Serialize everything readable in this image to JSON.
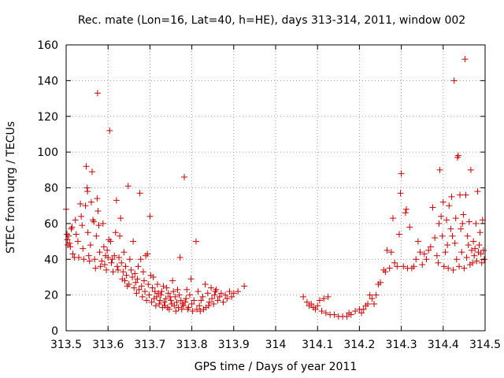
{
  "chart_data": {
    "type": "scatter",
    "title": "Rec. mate (Lon=16, Lat=40, h=HE), days 313-314, 2011, window 002",
    "xlabel": "GPS time / Days of year 2011",
    "ylabel": "STEC from uqrg / TECUs",
    "xlim": [
      313.5,
      314.5
    ],
    "ylim": [
      0,
      160
    ],
    "grid": true,
    "marker": "+",
    "marker_color": "#cc0000",
    "xticks": [
      313.5,
      313.6,
      313.7,
      313.8,
      313.9,
      314,
      314.1,
      314.2,
      314.3,
      314.4,
      314.5
    ],
    "xtick_labels": [
      "313.5",
      "313.6",
      "313.7",
      "313.8",
      "313.9",
      "314",
      "314.1",
      "314.2",
      "314.3",
      "314.4",
      "314.5"
    ],
    "yticks": [
      0,
      20,
      40,
      60,
      80,
      100,
      120,
      140,
      160
    ],
    "ytick_labels": [
      "0",
      "20",
      "40",
      "60",
      "80",
      "100",
      "120",
      "140",
      "160"
    ],
    "series": [
      {
        "name": "STEC",
        "points": [
          [
            313.5,
            68
          ],
          [
            313.502,
            54
          ],
          [
            313.503,
            51
          ],
          [
            313.504,
            48
          ],
          [
            313.506,
            53
          ],
          [
            313.508,
            49
          ],
          [
            313.51,
            47
          ],
          [
            313.512,
            57
          ],
          [
            313.514,
            58
          ],
          [
            313.516,
            43
          ],
          [
            313.52,
            41
          ],
          [
            313.522,
            62
          ],
          [
            313.524,
            54
          ],
          [
            313.528,
            50
          ],
          [
            313.53,
            41
          ],
          [
            313.534,
            71
          ],
          [
            313.536,
            64
          ],
          [
            313.538,
            59
          ],
          [
            313.54,
            46
          ],
          [
            313.542,
            40
          ],
          [
            313.546,
            70
          ],
          [
            313.548,
            92
          ],
          [
            313.55,
            80
          ],
          [
            313.551,
            78
          ],
          [
            313.552,
            55
          ],
          [
            313.554,
            42
          ],
          [
            313.556,
            39
          ],
          [
            313.558,
            48
          ],
          [
            313.56,
            72
          ],
          [
            313.562,
            89
          ],
          [
            313.564,
            62
          ],
          [
            313.566,
            61
          ],
          [
            313.568,
            40
          ],
          [
            313.57,
            35
          ],
          [
            313.572,
            53
          ],
          [
            313.574,
            74
          ],
          [
            313.575,
            133
          ],
          [
            313.576,
            67
          ],
          [
            313.578,
            59
          ],
          [
            313.58,
            44
          ],
          [
            313.582,
            36
          ],
          [
            313.585,
            39
          ],
          [
            313.588,
            60
          ],
          [
            313.59,
            47
          ],
          [
            313.592,
            37
          ],
          [
            313.594,
            42
          ],
          [
            313.596,
            34
          ],
          [
            313.598,
            45
          ],
          [
            313.6,
            41
          ],
          [
            313.602,
            51
          ],
          [
            313.604,
            112
          ],
          [
            313.606,
            50
          ],
          [
            313.608,
            38
          ],
          [
            313.61,
            40
          ],
          [
            313.612,
            33
          ],
          [
            313.615,
            42
          ],
          [
            313.618,
            55
          ],
          [
            313.62,
            73
          ],
          [
            313.622,
            36
          ],
          [
            313.624,
            34
          ],
          [
            313.626,
            41
          ],
          [
            313.628,
            53
          ],
          [
            313.63,
            63
          ],
          [
            313.632,
            38
          ],
          [
            313.634,
            29
          ],
          [
            313.636,
            33
          ],
          [
            313.638,
            44
          ],
          [
            313.64,
            28
          ],
          [
            313.642,
            36
          ],
          [
            313.644,
            31
          ],
          [
            313.646,
            25
          ],
          [
            313.648,
            81
          ],
          [
            313.65,
            26
          ],
          [
            313.652,
            40
          ],
          [
            313.655,
            34
          ],
          [
            313.658,
            30
          ],
          [
            313.66,
            50
          ],
          [
            313.662,
            24
          ],
          [
            313.664,
            32
          ],
          [
            313.666,
            27
          ],
          [
            313.668,
            21
          ],
          [
            313.67,
            29
          ],
          [
            313.672,
            36
          ],
          [
            313.674,
            23
          ],
          [
            313.676,
            77
          ],
          [
            313.678,
            40
          ],
          [
            313.68,
            25
          ],
          [
            313.682,
            19
          ],
          [
            313.684,
            33
          ],
          [
            313.686,
            28
          ],
          [
            313.688,
            22
          ],
          [
            313.69,
            42
          ],
          [
            313.692,
            17
          ],
          [
            313.694,
            43
          ],
          [
            313.696,
            26
          ],
          [
            313.698,
            20
          ],
          [
            313.7,
            64
          ],
          [
            313.702,
            31
          ],
          [
            313.704,
            16
          ],
          [
            313.706,
            24
          ],
          [
            313.708,
            30
          ],
          [
            313.71,
            18
          ],
          [
            313.712,
            22
          ],
          [
            313.714,
            14
          ],
          [
            313.716,
            19
          ],
          [
            313.718,
            26
          ],
          [
            313.72,
            21
          ],
          [
            313.722,
            15
          ],
          [
            313.724,
            17
          ],
          [
            313.726,
            20
          ],
          [
            313.728,
            22
          ],
          [
            313.73,
            13
          ],
          [
            313.732,
            25
          ],
          [
            313.734,
            16
          ],
          [
            313.736,
            14
          ],
          [
            313.738,
            18
          ],
          [
            313.74,
            24
          ],
          [
            313.742,
            13
          ],
          [
            313.744,
            21
          ],
          [
            313.746,
            12
          ],
          [
            313.748,
            19
          ],
          [
            313.75,
            17
          ],
          [
            313.752,
            15
          ],
          [
            313.754,
            28
          ],
          [
            313.756,
            22
          ],
          [
            313.758,
            14
          ],
          [
            313.76,
            19
          ],
          [
            313.762,
            11
          ],
          [
            313.764,
            16
          ],
          [
            313.766,
            23
          ],
          [
            313.768,
            13
          ],
          [
            313.77,
            20
          ],
          [
            313.772,
            41
          ],
          [
            313.774,
            17
          ],
          [
            313.776,
            12
          ],
          [
            313.778,
            15
          ],
          [
            313.78,
            14
          ],
          [
            313.782,
            86
          ],
          [
            313.784,
            16
          ],
          [
            313.786,
            18
          ],
          [
            313.788,
            23
          ],
          [
            313.79,
            12
          ],
          [
            313.792,
            13
          ],
          [
            313.795,
            20
          ],
          [
            313.798,
            29
          ],
          [
            313.8,
            15
          ],
          [
            313.802,
            11
          ],
          [
            313.805,
            17
          ],
          [
            313.81,
            50
          ],
          [
            313.812,
            12
          ],
          [
            313.815,
            22
          ],
          [
            313.818,
            14
          ],
          [
            313.82,
            11
          ],
          [
            313.822,
            17
          ],
          [
            313.826,
            19
          ],
          [
            313.828,
            12
          ],
          [
            313.832,
            26
          ],
          [
            313.834,
            13
          ],
          [
            313.838,
            21
          ],
          [
            313.84,
            14
          ],
          [
            313.842,
            16
          ],
          [
            313.846,
            24
          ],
          [
            313.848,
            18
          ],
          [
            313.852,
            15
          ],
          [
            313.854,
            20
          ],
          [
            313.856,
            22
          ],
          [
            313.858,
            23
          ],
          [
            313.862,
            17
          ],
          [
            313.866,
            19
          ],
          [
            313.87,
            21
          ],
          [
            313.875,
            16
          ],
          [
            313.88,
            20
          ],
          [
            313.884,
            18
          ],
          [
            313.89,
            22
          ],
          [
            313.895,
            19
          ],
          [
            313.9,
            21
          ],
          [
            313.91,
            22
          ],
          [
            313.925,
            25
          ],
          [
            314.066,
            19
          ],
          [
            314.075,
            16
          ],
          [
            314.08,
            14
          ],
          [
            314.085,
            15
          ],
          [
            314.09,
            13
          ],
          [
            314.095,
            12
          ],
          [
            314.1,
            14
          ],
          [
            314.105,
            17
          ],
          [
            314.11,
            11
          ],
          [
            314.115,
            18
          ],
          [
            314.12,
            10
          ],
          [
            314.125,
            19
          ],
          [
            314.13,
            9
          ],
          [
            314.14,
            9
          ],
          [
            314.15,
            8
          ],
          [
            314.16,
            8
          ],
          [
            314.17,
            8
          ],
          [
            314.175,
            10
          ],
          [
            314.18,
            9
          ],
          [
            314.19,
            11
          ],
          [
            314.2,
            12
          ],
          [
            314.205,
            10
          ],
          [
            314.21,
            12
          ],
          [
            314.215,
            14
          ],
          [
            314.22,
            15
          ],
          [
            314.225,
            20
          ],
          [
            314.23,
            18
          ],
          [
            314.235,
            15
          ],
          [
            314.24,
            20
          ],
          [
            314.245,
            26
          ],
          [
            314.25,
            27
          ],
          [
            314.258,
            34
          ],
          [
            314.262,
            33
          ],
          [
            314.266,
            45
          ],
          [
            314.272,
            35
          ],
          [
            314.276,
            44
          ],
          [
            314.28,
            63
          ],
          [
            314.284,
            38
          ],
          [
            314.29,
            36
          ],
          [
            314.295,
            54
          ],
          [
            314.298,
            77
          ],
          [
            314.3,
            88
          ],
          [
            314.305,
            36
          ],
          [
            314.31,
            66
          ],
          [
            314.312,
            68
          ],
          [
            314.315,
            35
          ],
          [
            314.32,
            58
          ],
          [
            314.325,
            35
          ],
          [
            314.33,
            36
          ],
          [
            314.335,
            40
          ],
          [
            314.34,
            50
          ],
          [
            314.345,
            44
          ],
          [
            314.35,
            37
          ],
          [
            314.355,
            43
          ],
          [
            314.36,
            40
          ],
          [
            314.365,
            45
          ],
          [
            314.37,
            47
          ],
          [
            314.375,
            69
          ],
          [
            314.38,
            52
          ],
          [
            314.385,
            42
          ],
          [
            314.388,
            38
          ],
          [
            314.39,
            60
          ],
          [
            314.392,
            90
          ],
          [
            314.395,
            64
          ],
          [
            314.398,
            53
          ],
          [
            314.4,
            72
          ],
          [
            314.402,
            36
          ],
          [
            314.405,
            44
          ],
          [
            314.408,
            62
          ],
          [
            314.41,
            48
          ],
          [
            314.412,
            35
          ],
          [
            314.414,
            70
          ],
          [
            314.418,
            57
          ],
          [
            314.42,
            75
          ],
          [
            314.422,
            53
          ],
          [
            314.424,
            34
          ],
          [
            314.426,
            140
          ],
          [
            314.428,
            49
          ],
          [
            314.43,
            63
          ],
          [
            314.432,
            40
          ],
          [
            314.434,
            97
          ],
          [
            314.436,
            98
          ],
          [
            314.438,
            36
          ],
          [
            314.44,
            76
          ],
          [
            314.442,
            57
          ],
          [
            314.444,
            44
          ],
          [
            314.446,
            60
          ],
          [
            314.448,
            65
          ],
          [
            314.45,
            35
          ],
          [
            314.452,
            152
          ],
          [
            314.454,
            76
          ],
          [
            314.456,
            41
          ],
          [
            314.458,
            53
          ],
          [
            314.46,
            48
          ],
          [
            314.462,
            61
          ],
          [
            314.464,
            37
          ],
          [
            314.466,
            90
          ],
          [
            314.468,
            45
          ],
          [
            314.47,
            38
          ],
          [
            314.472,
            50
          ],
          [
            314.474,
            42
          ],
          [
            314.476,
            46
          ],
          [
            314.478,
            60
          ],
          [
            314.48,
            39
          ],
          [
            314.482,
            78
          ],
          [
            314.484,
            44
          ],
          [
            314.486,
            48
          ],
          [
            314.488,
            55
          ],
          [
            314.49,
            43
          ],
          [
            314.492,
            38
          ],
          [
            314.494,
            62
          ],
          [
            314.496,
            45
          ],
          [
            314.498,
            40
          ]
        ]
      }
    ]
  }
}
